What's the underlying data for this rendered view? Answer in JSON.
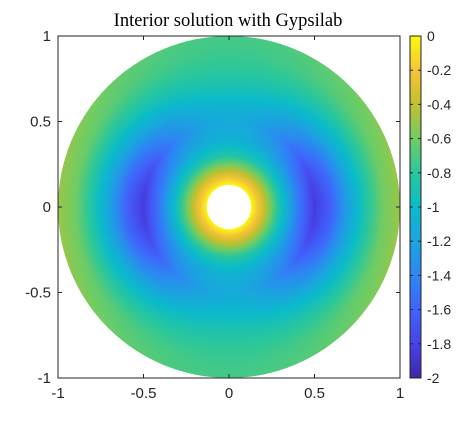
{
  "chart_data": {
    "type": "heatmap",
    "title": "Interior solution with Gypsilab",
    "xlabel": "",
    "ylabel": "",
    "xlim": [
      -1,
      1
    ],
    "ylim": [
      -1,
      1
    ],
    "x_ticks": [
      -1,
      -0.5,
      0,
      0.5,
      1
    ],
    "y_ticks": [
      1,
      0.5,
      0,
      -0.5,
      -1
    ],
    "x_tick_labels": [
      "-1",
      "-0.5",
      "0",
      "0.5",
      "1"
    ],
    "y_tick_labels": [
      "1",
      "0.5",
      "0",
      "-0.5",
      "-1"
    ],
    "domain": {
      "shape": "annulus",
      "center": [
        0,
        0
      ],
      "outer_radius": 1.0,
      "inner_radius": 0.13
    },
    "field_profile": {
      "radius": [
        0.13,
        0.2,
        0.3,
        0.4,
        0.5,
        0.6,
        0.7,
        0.8,
        0.9,
        1.0
      ],
      "value_along_x_axis": [
        0.0,
        -0.35,
        -0.9,
        -1.45,
        -1.85,
        -1.6,
        -1.2,
        -0.85,
        -0.6,
        -0.5
      ],
      "value_along_y_axis": [
        0.0,
        -0.35,
        -0.85,
        -1.1,
        -1.15,
        -1.05,
        -0.9,
        -0.8,
        -0.75,
        -0.72
      ]
    },
    "colorbar": {
      "colormap": "parula",
      "min": -2,
      "max": 0,
      "ticks": [
        0,
        -0.2,
        -0.4,
        -0.6,
        -0.8,
        -1,
        -1.2,
        -1.4,
        -1.6,
        -1.8,
        -2
      ],
      "tick_labels": [
        "0",
        "-0.2",
        "-0.4",
        "-0.6",
        "-0.8",
        "-1",
        "-1.2",
        "-1.4",
        "-1.6",
        "-1.8",
        "-2"
      ],
      "stops": [
        {
          "value": -2.0,
          "color": "#3e26a8"
        },
        {
          "value": -1.8,
          "color": "#4743e8"
        },
        {
          "value": -1.6,
          "color": "#4163fb"
        },
        {
          "value": -1.4,
          "color": "#2d87f3"
        },
        {
          "value": -1.2,
          "color": "#1ba4df"
        },
        {
          "value": -1.0,
          "color": "#0bbbca"
        },
        {
          "value": -0.8,
          "color": "#2ac79c"
        },
        {
          "value": -0.6,
          "color": "#71cc63"
        },
        {
          "value": -0.4,
          "color": "#c3c02e"
        },
        {
          "value": -0.2,
          "color": "#f6c337"
        },
        {
          "value": 0.0,
          "color": "#f9fb0e"
        }
      ]
    },
    "hole_color": "#ffffff",
    "axis_color": "#262626"
  }
}
